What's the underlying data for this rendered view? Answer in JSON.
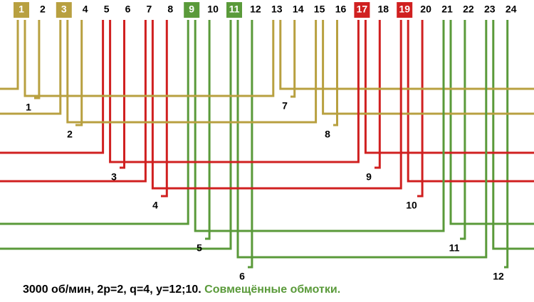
{
  "phase_colors": {
    "a": "#b8a040",
    "b": "#d02020",
    "c": "#5a9a3a"
  },
  "slots": [
    {
      "label": "1",
      "highlight": "#b8a040"
    },
    {
      "label": "2"
    },
    {
      "label": "3",
      "highlight": "#b8a040"
    },
    {
      "label": "4"
    },
    {
      "label": "5"
    },
    {
      "label": "6"
    },
    {
      "label": "7"
    },
    {
      "label": "8"
    },
    {
      "label": "9",
      "highlight": "#5a9a3a"
    },
    {
      "label": "10"
    },
    {
      "label": "11",
      "highlight": "#5a9a3a"
    },
    {
      "label": "12"
    },
    {
      "label": "13"
    },
    {
      "label": "14"
    },
    {
      "label": "15"
    },
    {
      "label": "16"
    },
    {
      "label": "17",
      "highlight": "#d02020"
    },
    {
      "label": "18"
    },
    {
      "label": "19",
      "highlight": "#d02020"
    },
    {
      "label": "20"
    },
    {
      "label": "21"
    },
    {
      "label": "22"
    },
    {
      "label": "23"
    },
    {
      "label": "24"
    }
  ],
  "coils": [
    {
      "label": "1",
      "phase": "a"
    },
    {
      "label": "2",
      "phase": "a"
    },
    {
      "label": "3",
      "phase": "b"
    },
    {
      "label": "4",
      "phase": "b"
    },
    {
      "label": "5",
      "phase": "c"
    },
    {
      "label": "6",
      "phase": "c"
    },
    {
      "label": "7",
      "phase": "a"
    },
    {
      "label": "8",
      "phase": "a"
    },
    {
      "label": "9",
      "phase": "b"
    },
    {
      "label": "10",
      "phase": "b"
    },
    {
      "label": "11",
      "phase": "c"
    },
    {
      "label": "12",
      "phase": "c"
    }
  ],
  "caption": {
    "main": "3000 об/мин, 2p=2, q=4, y=12;10.",
    "highlight": "Совмещённые обмотки.",
    "highlight_color": "#5a9a3a"
  }
}
